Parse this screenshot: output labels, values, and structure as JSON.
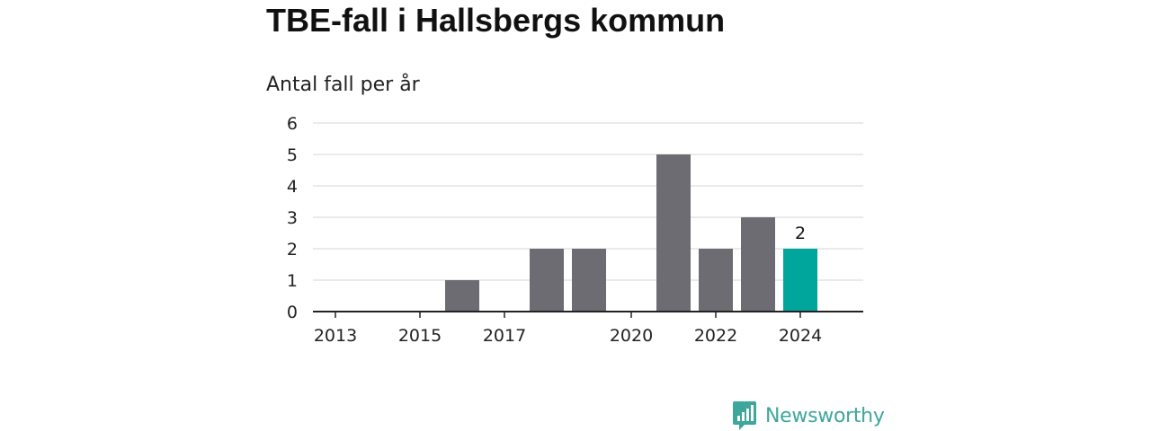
{
  "title": "TBE-fall i Hallsbergs kommun",
  "subtitle": "Antal fall per år",
  "brand": {
    "name": "Newsworthy",
    "icon": "bar-chart-speech-bubble-icon"
  },
  "colors": {
    "bar": "#6d6c72",
    "highlight": "#00a69c",
    "grid": "#dddddd",
    "axis": "#222222",
    "brand": "#3fa69c"
  },
  "chart_data": {
    "type": "bar",
    "title": "TBE-fall i Hallsbergs kommun",
    "ylabel": "Antal fall per år",
    "xlabel": "",
    "ylim": [
      0,
      6
    ],
    "yticks": [
      0,
      1,
      2,
      3,
      4,
      5,
      6
    ],
    "xticks": [
      "2013",
      "2015",
      "2017",
      "2020",
      "2022",
      "2024"
    ],
    "grid": true,
    "categories": [
      "2013",
      "2014",
      "2015",
      "2016",
      "2017",
      "2018",
      "2019",
      "2020",
      "2021",
      "2022",
      "2023",
      "2024"
    ],
    "values": [
      0,
      0,
      0,
      1,
      0,
      2,
      2,
      0,
      5,
      2,
      3,
      2
    ],
    "highlight_category": "2024",
    "data_labels": [
      {
        "category": "2024",
        "text": "2"
      }
    ]
  }
}
